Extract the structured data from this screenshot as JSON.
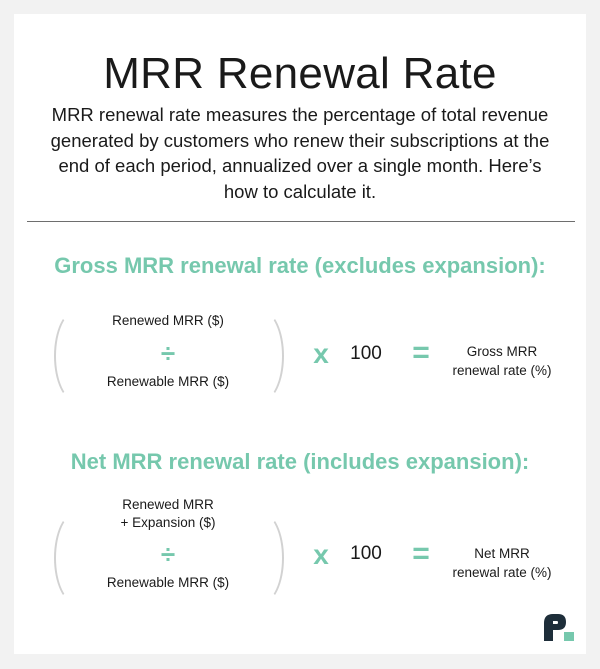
{
  "title": "MRR Renewal Rate",
  "intro": "MRR renewal rate measures the percentage of total revenue generated by customers who renew their subscriptions at the end of each period, annualized over a single month. Here’s how to calculate it.",
  "gross": {
    "heading": "Gross MRR renewal rate (excludes expansion):",
    "numerator": "Renewed MRR ($)",
    "divide_symbol": "÷",
    "denominator": "Renewable MRR ($)",
    "times_symbol": "x",
    "multiplier": "100",
    "equals_symbol": "=",
    "result_line1": "Gross MRR",
    "result_line2": "renewal rate (%)"
  },
  "net": {
    "heading": "Net MRR renewal rate (includes expansion):",
    "numerator_line1": "Renewed MRR",
    "numerator_line2": "+ Expansion ($)",
    "divide_symbol": "÷",
    "denominator": "Renewable MRR ($)",
    "times_symbol": "x",
    "multiplier": "100",
    "equals_symbol": "=",
    "result_line1": "Net MRR",
    "result_line2": "renewal rate (%)"
  },
  "colors": {
    "accent": "#76c8ad",
    "logo": "#1e2e3a",
    "text": "#1a1a1a"
  },
  "logo_icon": "brand-logo-icon"
}
